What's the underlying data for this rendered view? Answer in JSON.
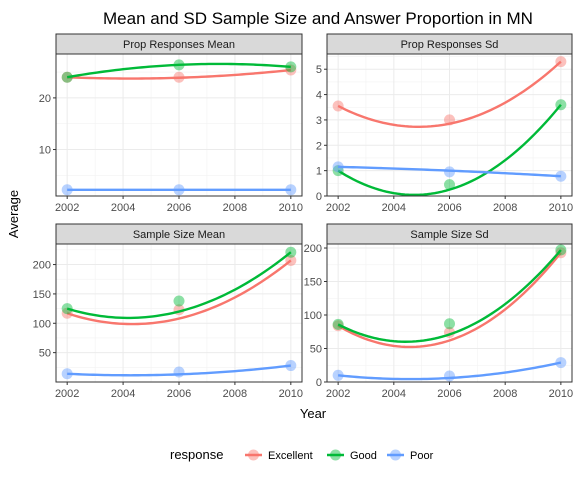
{
  "title": "Mean and SD Sample Size and Answer Proportion in MN",
  "colors": {
    "Excellent": "#f8766d",
    "Good": "#00ba38",
    "Poor": "#619cff"
  },
  "chart_data": {
    "type": "line",
    "title": "Mean and SD Sample Size and Answer Proportion in MN",
    "xlabel": "Year",
    "ylabel": "Average",
    "legend": {
      "title": "response",
      "position": "bottom",
      "entries": [
        "Excellent",
        "Good",
        "Poor"
      ]
    },
    "grid": true,
    "smoothed": true,
    "x": [
      2002,
      2006,
      2010
    ],
    "panels": [
      {
        "name": "Prop Responses Mean",
        "xlim": [
          2001.6,
          2010.4
        ],
        "ylim": [
          1,
          28.5
        ],
        "xticks": [
          2002,
          2004,
          2006,
          2008,
          2010
        ],
        "yticks": [
          10,
          20
        ],
        "series": [
          {
            "name": "Excellent",
            "values": [
              24.0,
              24.0,
              25.4
            ],
            "curve_mid": 23.9
          },
          {
            "name": "Good",
            "values": [
              24.0,
              26.4,
              26.0
            ],
            "curve_mid": 26.4
          },
          {
            "name": "Poor",
            "values": [
              2.2,
              2.2,
              2.2
            ],
            "curve_mid": 2.2
          }
        ]
      },
      {
        "name": "Prop Responses Sd",
        "xlim": [
          2001.6,
          2010.4
        ],
        "ylim": [
          0,
          5.6
        ],
        "xticks": [
          2002,
          2004,
          2006,
          2008,
          2010
        ],
        "yticks": [
          0,
          1,
          2,
          3,
          4,
          5
        ],
        "series": [
          {
            "name": "Excellent",
            "values": [
              3.55,
              3.0,
              5.3
            ],
            "curve_mid": 2.85
          },
          {
            "name": "Good",
            "values": [
              1.0,
              0.45,
              3.6
            ],
            "curve_mid": 0.25
          },
          {
            "name": "Poor",
            "values": [
              1.15,
              0.95,
              0.78
            ],
            "curve_mid": 1.0
          }
        ]
      },
      {
        "name": "Sample Size Mean",
        "xlim": [
          2001.6,
          2010.4
        ],
        "ylim": [
          0,
          235
        ],
        "xticks": [
          2002,
          2004,
          2006,
          2008,
          2010
        ],
        "yticks": [
          50,
          100,
          150,
          200
        ],
        "series": [
          {
            "name": "Excellent",
            "values": [
              117,
              123,
              207
            ],
            "curve_mid": 108
          },
          {
            "name": "Good",
            "values": [
              125,
              138,
              221
            ],
            "curve_mid": 120
          },
          {
            "name": "Poor",
            "values": [
              14,
              17,
              28
            ],
            "curve_mid": 13
          }
        ]
      },
      {
        "name": "Sample Size Sd",
        "xlim": [
          2001.6,
          2010.4
        ],
        "ylim": [
          0,
          206
        ],
        "xticks": [
          2002,
          2004,
          2006,
          2008,
          2010
        ],
        "yticks": [
          0,
          50,
          100,
          150,
          200
        ],
        "series": [
          {
            "name": "Excellent",
            "values": [
              84,
              74,
              193
            ],
            "curve_mid": 62
          },
          {
            "name": "Good",
            "values": [
              86,
              87,
              197
            ],
            "curve_mid": 71
          },
          {
            "name": "Poor",
            "values": [
              10,
              9,
              29
            ],
            "curve_mid": 6
          }
        ]
      }
    ]
  }
}
